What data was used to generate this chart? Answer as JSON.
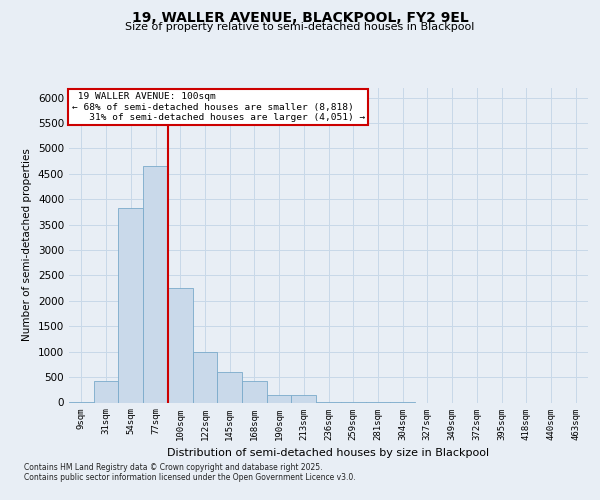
{
  "title1": "19, WALLER AVENUE, BLACKPOOL, FY2 9EL",
  "title2": "Size of property relative to semi-detached houses in Blackpool",
  "xlabel": "Distribution of semi-detached houses by size in Blackpool",
  "ylabel": "Number of semi-detached properties",
  "categories": [
    "9sqm",
    "31sqm",
    "54sqm",
    "77sqm",
    "100sqm",
    "122sqm",
    "145sqm",
    "168sqm",
    "190sqm",
    "213sqm",
    "236sqm",
    "259sqm",
    "281sqm",
    "304sqm",
    "327sqm",
    "349sqm",
    "372sqm",
    "395sqm",
    "418sqm",
    "440sqm",
    "463sqm"
  ],
  "values": [
    10,
    420,
    3820,
    4650,
    2250,
    1000,
    600,
    420,
    155,
    145,
    10,
    5,
    2,
    1,
    0,
    0,
    0,
    0,
    0,
    0,
    0
  ],
  "bar_color": "#c9d9ea",
  "bar_edge_color": "#7aaaca",
  "property_index": 4,
  "property_label": "19 WALLER AVENUE: 100sqm",
  "smaller_pct": "68%",
  "smaller_count": "8,818",
  "larger_pct": "31%",
  "larger_count": "4,051",
  "vline_color": "#cc0000",
  "annotation_box_color": "#cc0000",
  "grid_color": "#c8d8e8",
  "ylim": [
    0,
    6200
  ],
  "yticks": [
    0,
    500,
    1000,
    1500,
    2000,
    2500,
    3000,
    3500,
    4000,
    4500,
    5000,
    5500,
    6000
  ],
  "footnote1": "Contains HM Land Registry data © Crown copyright and database right 2025.",
  "footnote2": "Contains public sector information licensed under the Open Government Licence v3.0.",
  "bg_color": "#e8eef5",
  "plot_bg_color": "#e8eef5"
}
